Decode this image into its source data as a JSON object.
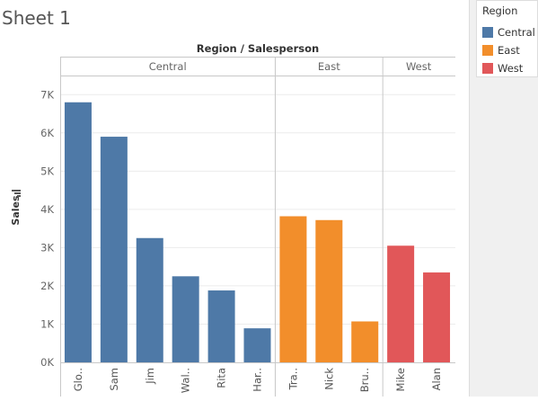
{
  "sheet": {
    "title": "Sheet 1"
  },
  "legend": {
    "title": "Region",
    "items": [
      {
        "label": "Central",
        "color": "#4e79a7"
      },
      {
        "label": "East",
        "color": "#f28e2b"
      },
      {
        "label": "West",
        "color": "#e15759"
      }
    ]
  },
  "chart_data": {
    "type": "bar",
    "title": "Region / Salesperson",
    "ylabel": "Sales",
    "ylabel_icon": "bar-chart-sort-icon",
    "ylim": [
      0,
      7500
    ],
    "yticks": [
      {
        "value": 0,
        "label": "0K"
      },
      {
        "value": 1000,
        "label": "1K"
      },
      {
        "value": 2000,
        "label": "2K"
      },
      {
        "value": 3000,
        "label": "3K"
      },
      {
        "value": 4000,
        "label": "4K"
      },
      {
        "value": 5000,
        "label": "5K"
      },
      {
        "value": 6000,
        "label": "6K"
      },
      {
        "value": 7000,
        "label": "7K"
      }
    ],
    "grid": true,
    "groups": [
      {
        "name": "Central",
        "color": "#4e79a7",
        "bars": [
          {
            "label": "Glo..",
            "value": 6800
          },
          {
            "label": "Sam",
            "value": 5900
          },
          {
            "label": "Jim",
            "value": 3250
          },
          {
            "label": "Wal..",
            "value": 2250
          },
          {
            "label": "Rita",
            "value": 1880
          },
          {
            "label": "Har..",
            "value": 890
          }
        ]
      },
      {
        "name": "East",
        "color": "#f28e2b",
        "bars": [
          {
            "label": "Tra..",
            "value": 3820
          },
          {
            "label": "Nick",
            "value": 3720
          },
          {
            "label": "Bru..",
            "value": 1070
          }
        ]
      },
      {
        "name": "West",
        "color": "#e15759",
        "bars": [
          {
            "label": "Mike",
            "value": 3050
          },
          {
            "label": "Alan",
            "value": 2350
          }
        ]
      }
    ]
  }
}
